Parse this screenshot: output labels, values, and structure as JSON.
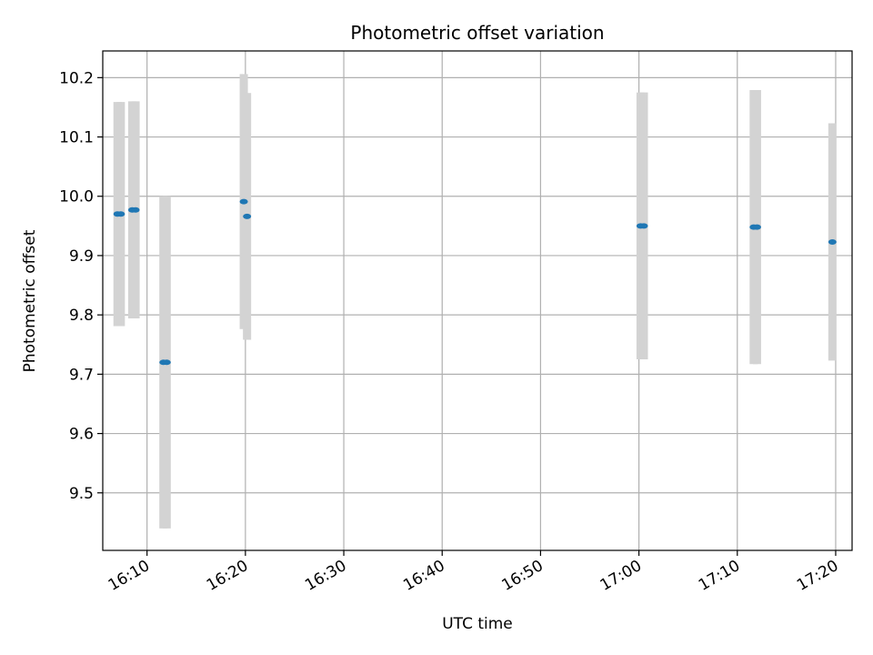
{
  "chart_data": {
    "type": "scatter",
    "title": "Photometric offset variation",
    "xlabel": "UTC time",
    "ylabel": "Photometric offset",
    "x_ticks": [
      "16:10",
      "16:20",
      "16:30",
      "16:40",
      "16:50",
      "17:00",
      "17:10",
      "17:20"
    ],
    "y_ticks": [
      "9.5",
      "9.6",
      "9.7",
      "9.8",
      "9.9",
      "10.0",
      "10.1",
      "10.2"
    ],
    "xlim": [
      "16:05:30",
      "17:21:40"
    ],
    "ylim": [
      9.403,
      10.245
    ],
    "grid": true,
    "series": [
      {
        "marker_color": "#1f77b4",
        "errorbar_color": "#d3d3d3",
        "points": [
          {
            "x": "16:07:00",
            "y": 9.97,
            "yerr": 0.189
          },
          {
            "x": "16:07:20",
            "y": 9.97,
            "yerr": 0.189
          },
          {
            "x": "16:08:30",
            "y": 9.977,
            "yerr": 0.183
          },
          {
            "x": "16:08:50",
            "y": 9.977,
            "yerr": 0.183
          },
          {
            "x": "16:11:40",
            "y": 9.72,
            "yerr": 0.28
          },
          {
            "x": "16:12:00",
            "y": 9.72,
            "yerr": 0.28
          },
          {
            "x": "16:19:50",
            "y": 9.991,
            "yerr": 0.215
          },
          {
            "x": "16:20:10",
            "y": 9.966,
            "yerr": 0.208
          },
          {
            "x": "17:00:10",
            "y": 9.95,
            "yerr": 0.225
          },
          {
            "x": "17:00:30",
            "y": 9.95,
            "yerr": 0.225
          },
          {
            "x": "17:11:40",
            "y": 9.948,
            "yerr": 0.231
          },
          {
            "x": "17:12:00",
            "y": 9.948,
            "yerr": 0.231
          },
          {
            "x": "17:19:40",
            "y": 9.923,
            "yerr": 0.2
          }
        ]
      }
    ]
  }
}
